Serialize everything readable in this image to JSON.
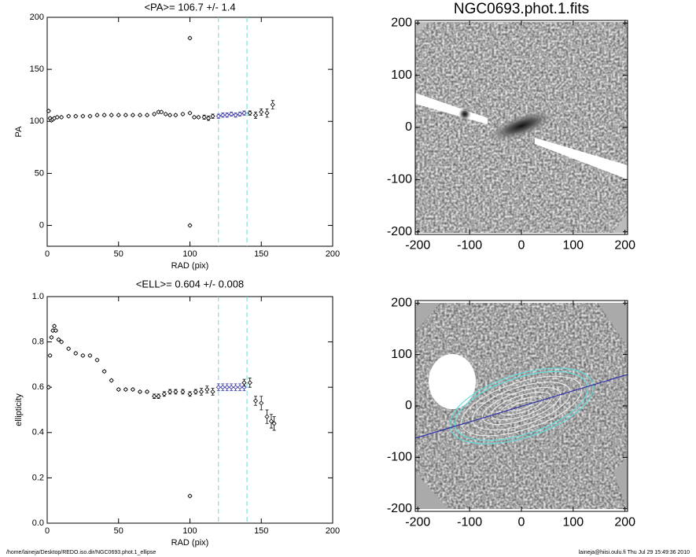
{
  "chart_data": [
    {
      "type": "scatter",
      "title": "<PA>= 106.7 +/-   1.4",
      "xlabel": "RAD (pix)",
      "ylabel": "PA",
      "xlim": [
        0,
        200
      ],
      "ylim": [
        -20,
        200
      ],
      "xticks": [
        0,
        50,
        100,
        150,
        200
      ],
      "yticks": [
        0,
        50,
        100,
        150,
        200
      ],
      "vlines": [
        120,
        140
      ],
      "vline_color": "#66dddd",
      "series": [
        {
          "color": "#000000",
          "line": false,
          "x": [
            1,
            2,
            3,
            4,
            5,
            7,
            10,
            15,
            20,
            25,
            30,
            35,
            40,
            45,
            50,
            55,
            60,
            65,
            70,
            75,
            78,
            80,
            83,
            86,
            90,
            95,
            100,
            100,
            100,
            103,
            106,
            110,
            113,
            116
          ],
          "values": [
            110,
            103,
            101,
            102,
            103,
            104,
            104,
            105,
            105,
            105,
            105,
            106,
            106,
            106,
            106,
            106,
            106,
            106,
            106,
            107,
            109,
            109,
            107,
            106,
            106,
            107,
            108,
            180,
            0,
            104,
            104,
            104,
            103,
            105
          ],
          "errors": [
            1,
            1,
            1,
            1,
            1,
            1,
            1,
            1,
            1,
            1,
            1,
            1,
            1,
            1,
            1,
            1,
            1,
            1,
            1,
            1,
            1,
            1,
            1,
            1,
            1,
            1,
            1,
            1,
            1,
            1,
            1,
            2,
            2,
            2
          ]
        },
        {
          "color": "#3333aa",
          "line": true,
          "x": [
            120,
            123,
            126,
            129,
            132,
            135,
            138
          ],
          "values": [
            105,
            106,
            106,
            107,
            106,
            107,
            108
          ],
          "errors": [
            2,
            2,
            2,
            2,
            2,
            2,
            2
          ]
        },
        {
          "color": "#000000",
          "line": false,
          "x": [
            142,
            146,
            150,
            154,
            158
          ],
          "values": [
            108,
            106,
            109,
            108,
            116
          ],
          "errors": [
            2,
            3,
            3,
            4,
            4
          ]
        }
      ]
    },
    {
      "type": "image",
      "title": "NGC0693.phot.1.fits",
      "xlim": [
        -205,
        205
      ],
      "ylim": [
        -205,
        205
      ],
      "xticks": [
        -200,
        -100,
        0,
        100,
        200
      ],
      "yticks": [
        -200,
        -100,
        0,
        100,
        200
      ]
    },
    {
      "type": "scatter",
      "title": "<ELL>= 0.604 +/-  0.008",
      "xlabel": "RAD (pix)",
      "ylabel": "ellipticity",
      "xlim": [
        0,
        200
      ],
      "ylim": [
        0,
        1
      ],
      "xticks": [
        0,
        50,
        100,
        150,
        200
      ],
      "yticks": [
        {
          "value": 0,
          "label": "0.0"
        },
        0.2,
        0.4,
        0.6,
        0.8,
        {
          "value": 1,
          "label": "1.0"
        }
      ],
      "vlines": [
        120,
        140
      ],
      "vline_color": "#66dddd",
      "series": [
        {
          "color": "#000000",
          "line": false,
          "x": [
            1,
            2,
            3,
            4,
            5,
            6,
            8,
            10,
            15,
            20,
            25,
            30,
            35,
            40,
            45,
            50,
            55,
            60,
            65,
            70,
            75,
            78,
            82,
            86,
            90,
            95,
            100,
            100,
            104,
            108,
            112,
            116
          ],
          "values": [
            0.6,
            0.74,
            0.82,
            0.85,
            0.87,
            0.85,
            0.81,
            0.8,
            0.77,
            0.75,
            0.74,
            0.74,
            0.72,
            0.67,
            0.63,
            0.59,
            0.59,
            0.59,
            0.58,
            0.58,
            0.56,
            0.56,
            0.57,
            0.58,
            0.58,
            0.58,
            0.57,
            0.12,
            0.58,
            0.58,
            0.59,
            0.58
          ],
          "errors": [
            0.005,
            0.005,
            0.005,
            0.005,
            0.005,
            0.005,
            0.005,
            0.005,
            0.005,
            0.005,
            0.005,
            0.005,
            0.005,
            0.005,
            0.005,
            0.005,
            0.005,
            0.005,
            0.005,
            0.005,
            0.01,
            0.01,
            0.01,
            0.01,
            0.01,
            0.01,
            0.01,
            0.005,
            0.01,
            0.015,
            0.015,
            0.015
          ]
        },
        {
          "color": "#3333aa",
          "line": true,
          "x": [
            120,
            123,
            126,
            129,
            132,
            135,
            138
          ],
          "values": [
            0.6,
            0.6,
            0.6,
            0.6,
            0.6,
            0.6,
            0.6
          ],
          "errors": [
            0.015,
            0.015,
            0.015,
            0.015,
            0.015,
            0.015,
            0.015
          ]
        },
        {
          "color": "#000000",
          "line": false,
          "x": [
            138,
            142,
            146,
            150,
            154,
            157,
            159
          ],
          "values": [
            0.62,
            0.62,
            0.54,
            0.53,
            0.47,
            0.45,
            0.44
          ],
          "errors": [
            0.015,
            0.02,
            0.02,
            0.03,
            0.03,
            0.03,
            0.03
          ]
        }
      ]
    },
    {
      "type": "image",
      "xlim": [
        -205,
        205
      ],
      "ylim": [
        -205,
        205
      ],
      "xticks": [
        -200,
        -100,
        0,
        100,
        200
      ],
      "yticks": [
        -200,
        -100,
        0,
        100,
        200
      ]
    }
  ],
  "footer": {
    "left": "/home/laineja/Desktop/REDO.iso.dir/NGC0693.phot.1_ellipse",
    "right": "laineja@hiisi.oulu.fi  Thu Jul 29 15:49:36 2010"
  }
}
